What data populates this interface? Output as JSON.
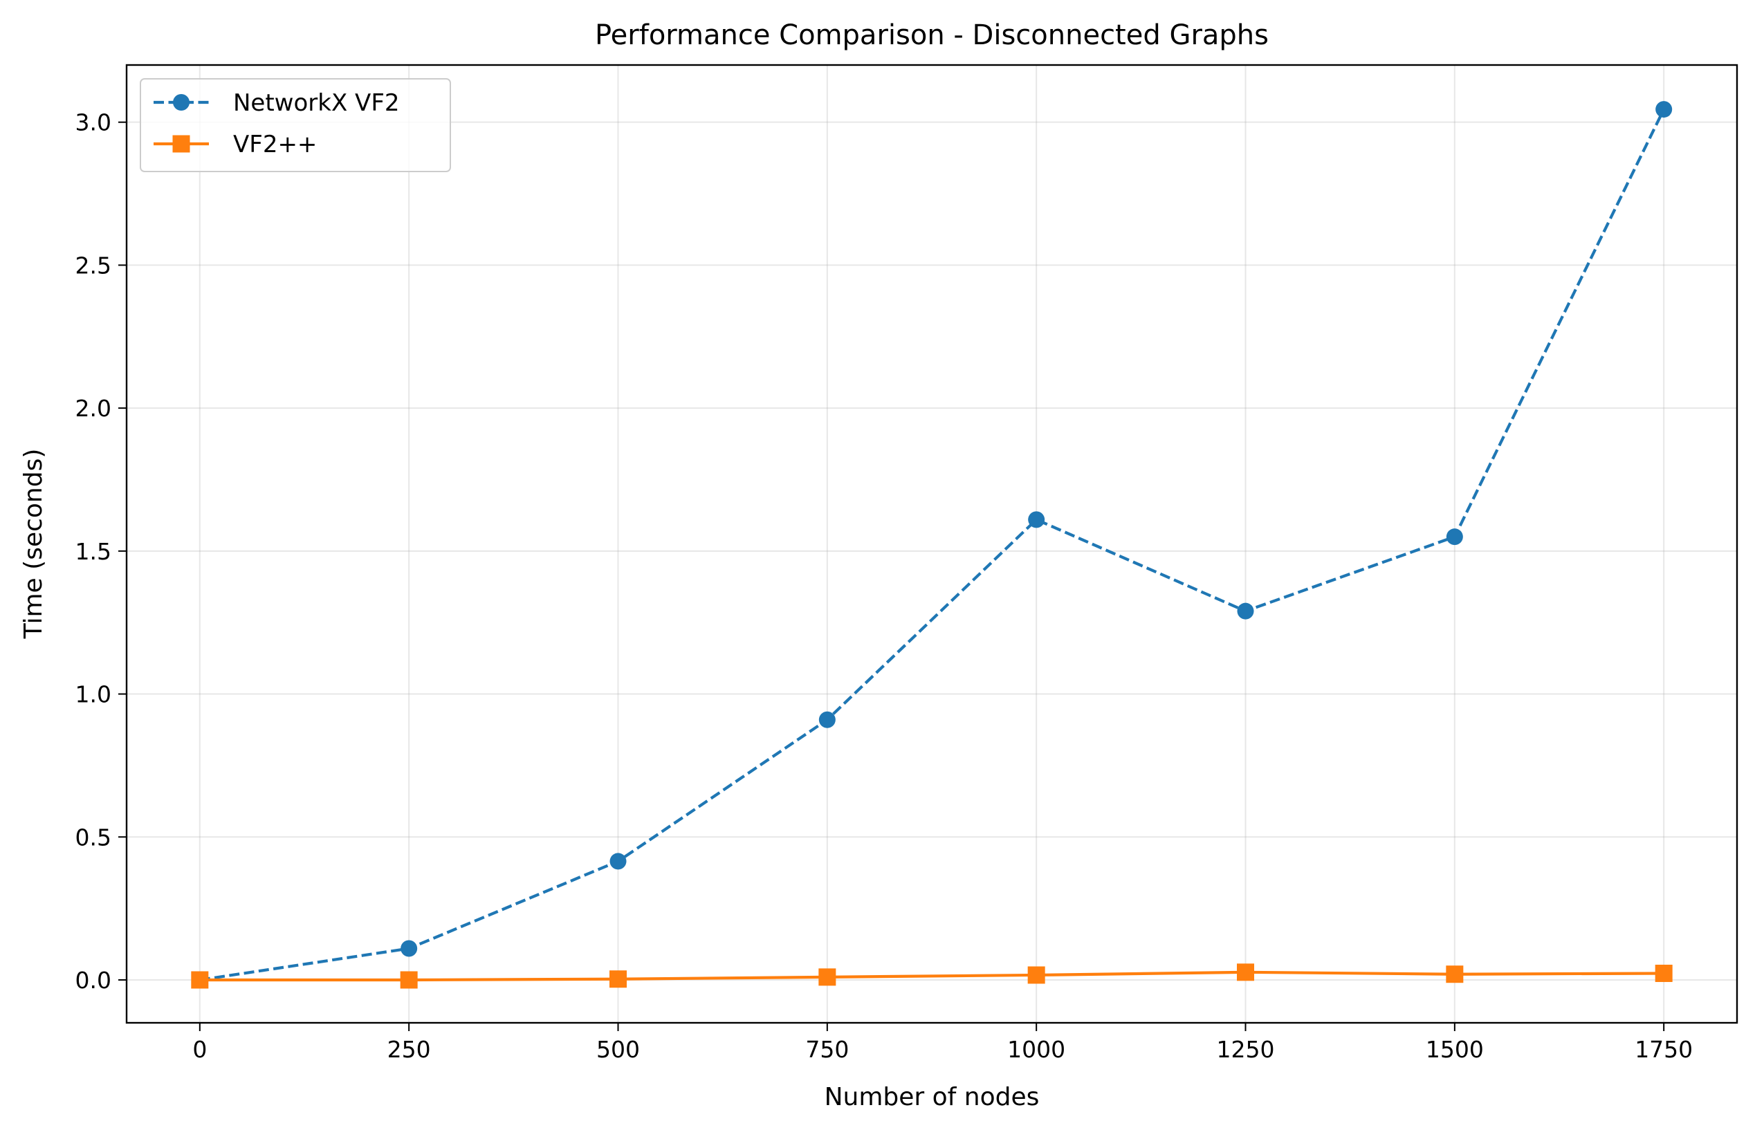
{
  "chart_data": {
    "type": "line",
    "title": "Performance Comparison - Disconnected Graphs",
    "xlabel": "Number of nodes",
    "ylabel": "Time (seconds)",
    "x": [
      0,
      250,
      500,
      750,
      1000,
      1250,
      1500,
      1750
    ],
    "xlim": [
      -87.5,
      1837.5
    ],
    "ylim": [
      -0.15,
      3.2
    ],
    "x_ticks": [
      0,
      250,
      500,
      750,
      1000,
      1250,
      1500,
      1750
    ],
    "x_tick_labels": [
      "0",
      "250",
      "500",
      "750",
      "1000",
      "1250",
      "1500",
      "1750"
    ],
    "y_ticks": [
      0.0,
      0.5,
      1.0,
      1.5,
      2.0,
      2.5,
      3.0
    ],
    "y_tick_labels": [
      "0.0",
      "0.5",
      "1.0",
      "1.5",
      "2.0",
      "2.5",
      "3.0"
    ],
    "grid": true,
    "legend_position": "top-left",
    "series": [
      {
        "name": "NetworkX VF2",
        "values": [
          0.0,
          0.11,
          0.415,
          0.91,
          1.61,
          1.29,
          1.55,
          3.045
        ],
        "color": "#1f77b4",
        "line_style": "dashed",
        "marker": "circle"
      },
      {
        "name": "VF2++",
        "values": [
          0.0,
          0.0,
          0.003,
          0.01,
          0.017,
          0.027,
          0.02,
          0.023
        ],
        "color": "#ff7f0e",
        "line_style": "solid",
        "marker": "square"
      }
    ]
  }
}
